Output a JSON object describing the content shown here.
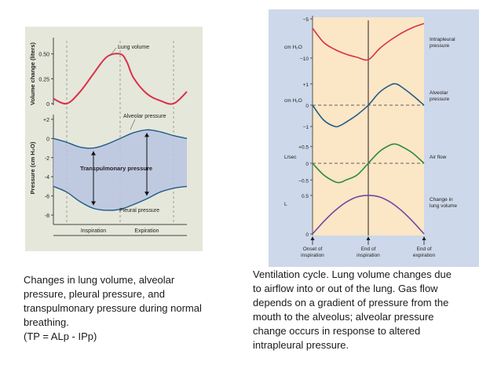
{
  "captions": {
    "left": "Changes in lung volume, alveolar\npressure, pleural pressure, and\ntranspulmonary pressure during normal\nbreathing.\n(TP = ALp -  IPp)",
    "right": "Ventilation cycle. Lung volume changes due\nto airflow into or out of the lung. Gas flow\ndepends on a gradient of pressure from the\nmouth to the alveolus; alveolar pressure\nchange occurs in response to altered\nintrapleural pressure."
  },
  "colors": {
    "panel_bg": "#e5e7da",
    "shade": "#b8c4e2",
    "red": "#d9304a",
    "blue": "#1f5c86",
    "green": "#2a8a3c",
    "purple": "#6e4aa6",
    "orange_bg": "#fbe6c6",
    "right_frame": "#cdd8ea"
  },
  "chart_data": [
    {
      "type": "line",
      "panels": [
        {
          "ylabel": "Volume change (liters)",
          "ylim": [
            0,
            0.6
          ],
          "yticks": [
            "0",
            "0.25",
            "0.50"
          ],
          "series": [
            {
              "name": "Lung volume",
              "color": "#d9304a",
              "x": [
                0,
                0.1,
                0.2,
                0.3,
                0.4,
                0.5,
                0.55,
                0.6,
                0.7,
                0.8,
                0.9,
                1.0
              ],
              "y": [
                0.05,
                0.0,
                0.12,
                0.3,
                0.47,
                0.5,
                0.42,
                0.26,
                0.1,
                0.03,
                0.0,
                0.12
              ]
            }
          ]
        },
        {
          "ylabel": "Pressure (cm H₂O)",
          "ylim": [
            -8,
            2
          ],
          "yticks": [
            "+2",
            "0",
            "-2",
            "-4",
            "-6",
            "-8"
          ],
          "series": [
            {
              "name": "Alveolar pressure",
              "color": "#1f5c86",
              "x": [
                0,
                0.1,
                0.2,
                0.3,
                0.4,
                0.5,
                0.6,
                0.7,
                0.8,
                0.9,
                1.0
              ],
              "y": [
                0,
                -0.4,
                -0.9,
                -1.0,
                -0.6,
                0,
                0.6,
                0.9,
                0.7,
                0.3,
                0
              ]
            },
            {
              "name": "Pleural pressure",
              "color": "#1f5c86",
              "x": [
                0,
                0.1,
                0.2,
                0.3,
                0.4,
                0.5,
                0.6,
                0.7,
                0.8,
                0.9,
                1.0
              ],
              "y": [
                -5,
                -5.6,
                -6.6,
                -7.3,
                -7.5,
                -7.4,
                -6.9,
                -6.3,
                -5.6,
                -5.2,
                -5
              ]
            }
          ],
          "annotations": [
            "Transpulmonary pressure"
          ]
        }
      ],
      "x_phases": [
        "Inspiration",
        "Expiration"
      ]
    },
    {
      "type": "line",
      "panels": [
        {
          "ylabel": "cm H₂O",
          "yticks": [
            "−5",
            "−10"
          ],
          "ylim": [
            -11,
            -5
          ],
          "series": [
            {
              "name": "Intrapleural\npressure",
              "color": "#d9304a",
              "x": [
                0,
                0.1,
                0.2,
                0.3,
                0.4,
                0.5,
                0.6,
                0.7,
                0.8,
                0.9,
                1.0
              ],
              "y": [
                -6.2,
                -8.0,
                -8.9,
                -9.5,
                -9.9,
                -10.2,
                -8.8,
                -7.7,
                -6.8,
                -6.1,
                -5.6
              ]
            }
          ]
        },
        {
          "ylabel": "cm H₂O",
          "yticks": [
            "+1",
            "0",
            "−1"
          ],
          "ylim": [
            -1.4,
            1.4
          ],
          "series": [
            {
              "name": "Alveolar\npressure",
              "color": "#1f5c86",
              "x": [
                0,
                0.1,
                0.2,
                0.25,
                0.3,
                0.4,
                0.5,
                0.6,
                0.7,
                0.75,
                0.8,
                0.9,
                1.0
              ],
              "y": [
                0.0,
                -0.7,
                -1.0,
                -0.95,
                -0.8,
                -0.45,
                0.0,
                0.6,
                0.95,
                1.0,
                0.85,
                0.45,
                0.0
              ]
            }
          ]
        },
        {
          "ylabel": "L/sec",
          "yticks": [
            "+0.5",
            "0",
            "−0.5"
          ],
          "ylim": [
            -0.75,
            0.75
          ],
          "series": [
            {
              "name": "Air flow",
              "color": "#2a8a3c",
              "x": [
                0,
                0.1,
                0.2,
                0.25,
                0.3,
                0.4,
                0.5,
                0.6,
                0.7,
                0.75,
                0.8,
                0.9,
                1.0
              ],
              "y": [
                0.0,
                -0.35,
                -0.55,
                -0.57,
                -0.5,
                -0.35,
                0.0,
                0.35,
                0.55,
                0.57,
                0.5,
                0.3,
                0.0
              ]
            }
          ]
        },
        {
          "ylabel": "L",
          "yticks": [
            "0.5",
            "0"
          ],
          "ylim": [
            0,
            0.55
          ],
          "series": [
            {
              "name": "Change in\nlung volume",
              "color": "#6e4aa6",
              "x": [
                0,
                0.1,
                0.2,
                0.3,
                0.4,
                0.5,
                0.6,
                0.7,
                0.8,
                0.9,
                1.0
              ],
              "y": [
                0.0,
                0.16,
                0.3,
                0.41,
                0.48,
                0.5,
                0.48,
                0.41,
                0.3,
                0.16,
                0.0
              ]
            }
          ]
        }
      ],
      "x_markers": [
        "Onset of\ninspiration",
        "End of\ninspiration",
        "End of\nexpiration"
      ]
    }
  ]
}
